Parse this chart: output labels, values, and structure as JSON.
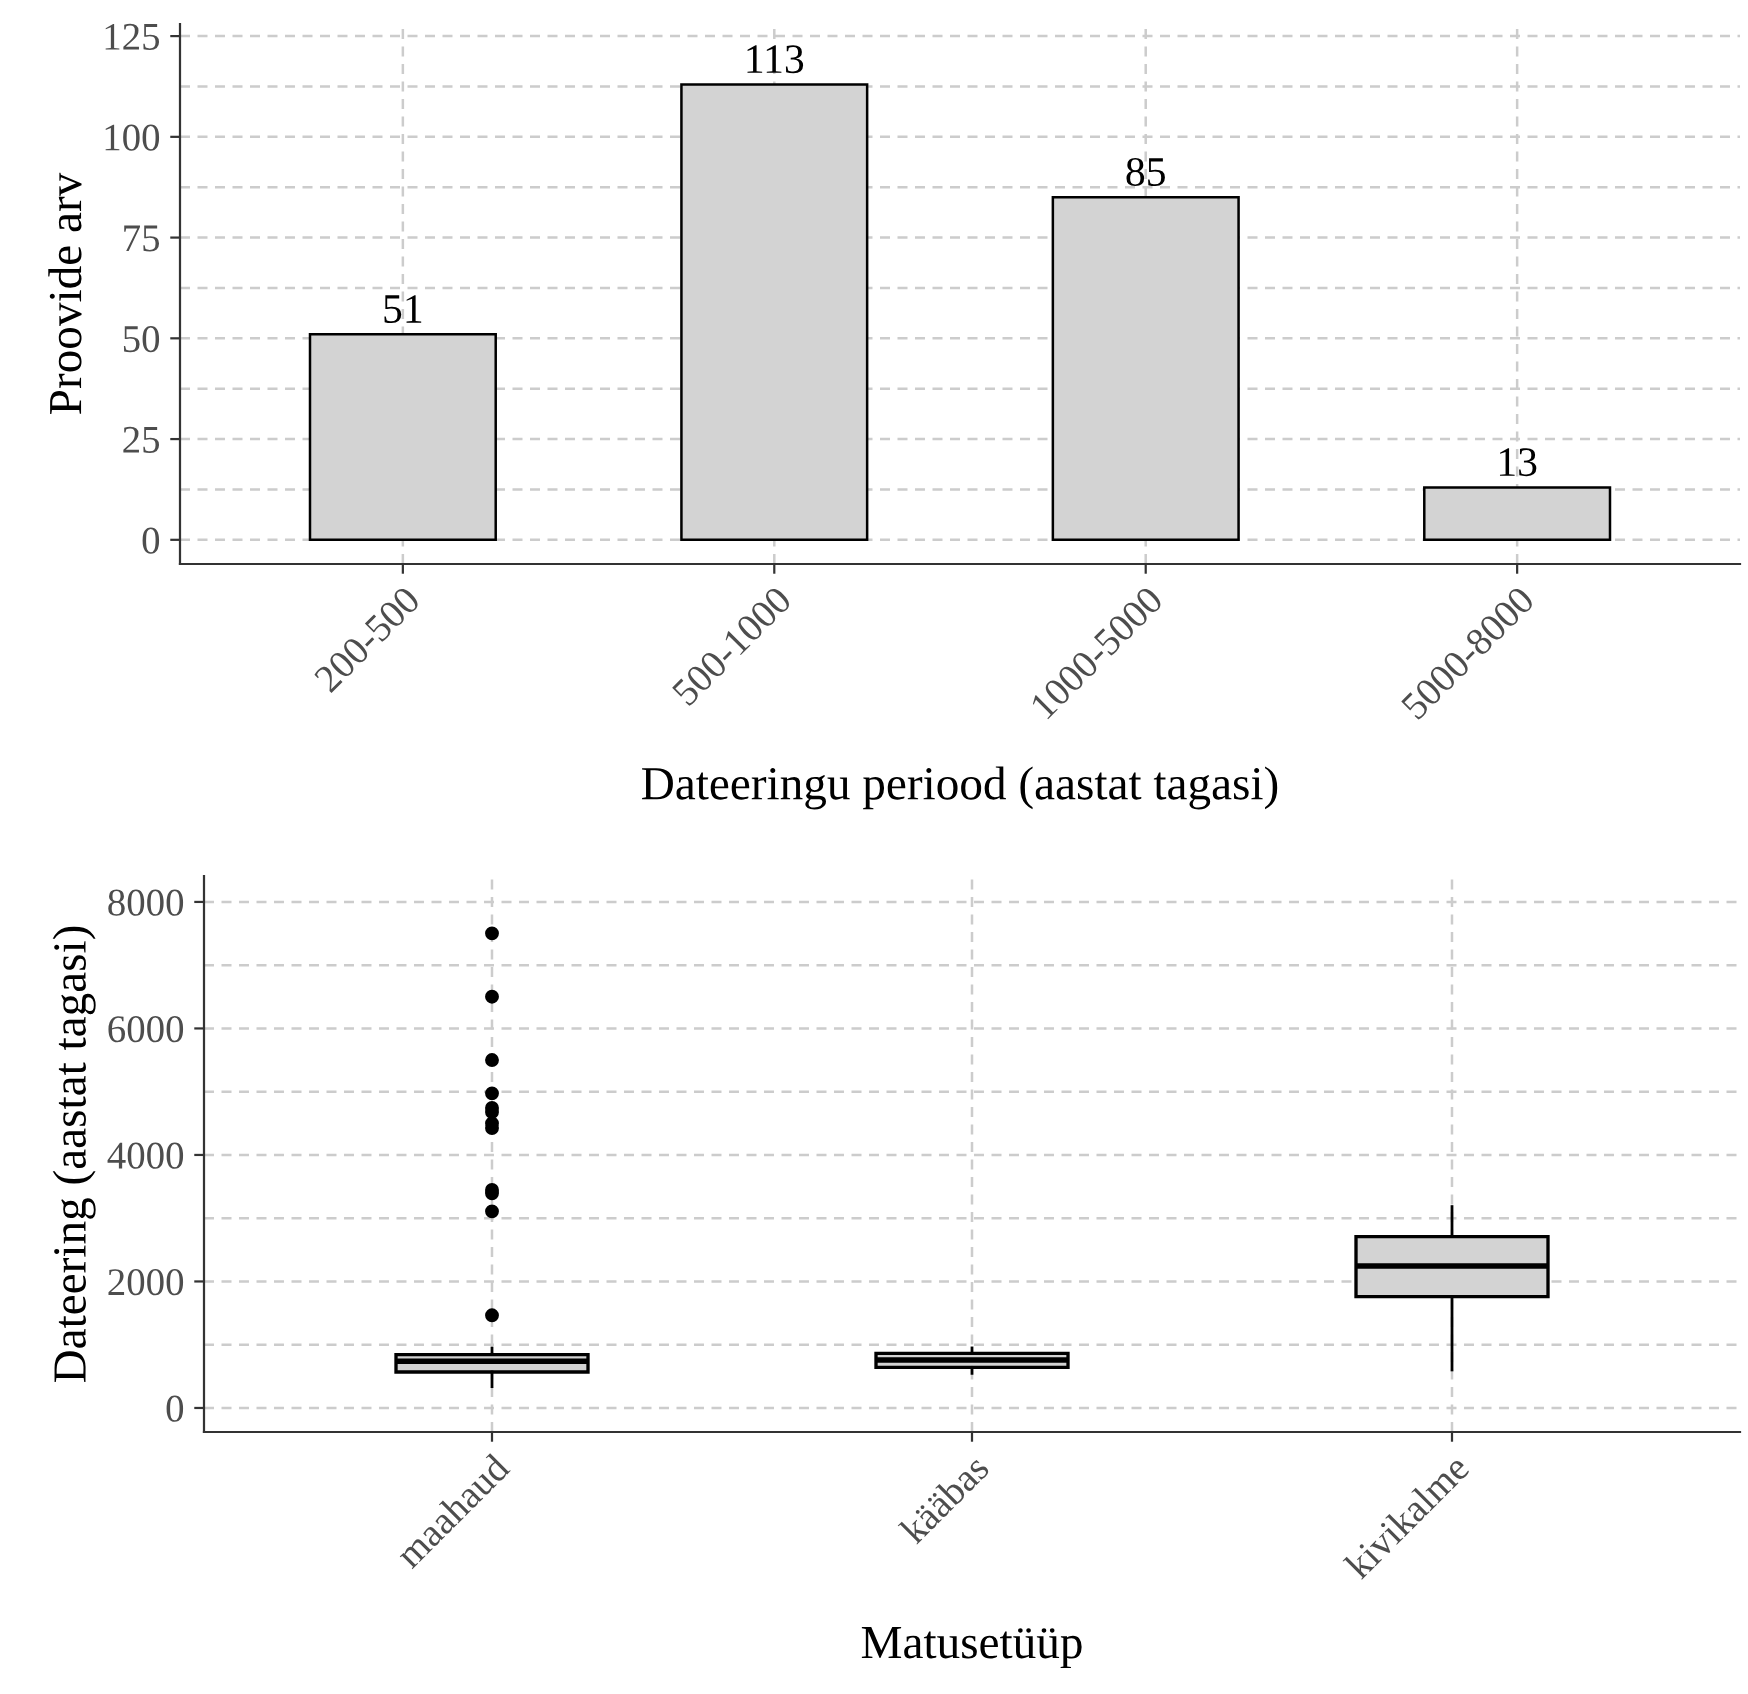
{
  "chart_data": [
    {
      "type": "bar",
      "xlabel": "Dateeringu periood (aastat tagasi)",
      "ylabel": "Proovide arv",
      "categories": [
        "200-500",
        "500-1000",
        "1000-5000",
        "5000-8000"
      ],
      "values": [
        51,
        113,
        85,
        13
      ],
      "color": "#d3d3d3",
      "ylim": [
        -6,
        128
      ],
      "yticks": [
        0,
        25,
        50,
        75,
        100,
        125
      ],
      "grid": true,
      "data_labels": true
    },
    {
      "type": "box",
      "xlabel": "Matusetüüp",
      "ylabel": "Dateering (aastat tagasi)",
      "categories": [
        "maahaud",
        "kääbas",
        "kivikalme"
      ],
      "color": "#d3d3d3",
      "boxes": [
        {
          "low": 337,
          "q1": 569,
          "median": 738,
          "q3": 843,
          "high": 948,
          "outliers": [
            1465,
            3108,
            3393,
            3446,
            4426,
            4500,
            4679,
            4742,
            4974,
            5500,
            6502,
            7503
          ]
        },
        {
          "low": 547,
          "q1": 642,
          "median": 759,
          "q3": 864,
          "high": 949
        },
        {
          "low": 601,
          "q1": 1761,
          "median": 2245,
          "q3": 2710,
          "high": 3184
        }
      ],
      "ylim": [
        -380,
        8410
      ],
      "yticks": [
        0,
        2000,
        4000,
        6000,
        8000
      ],
      "grid": true
    }
  ]
}
